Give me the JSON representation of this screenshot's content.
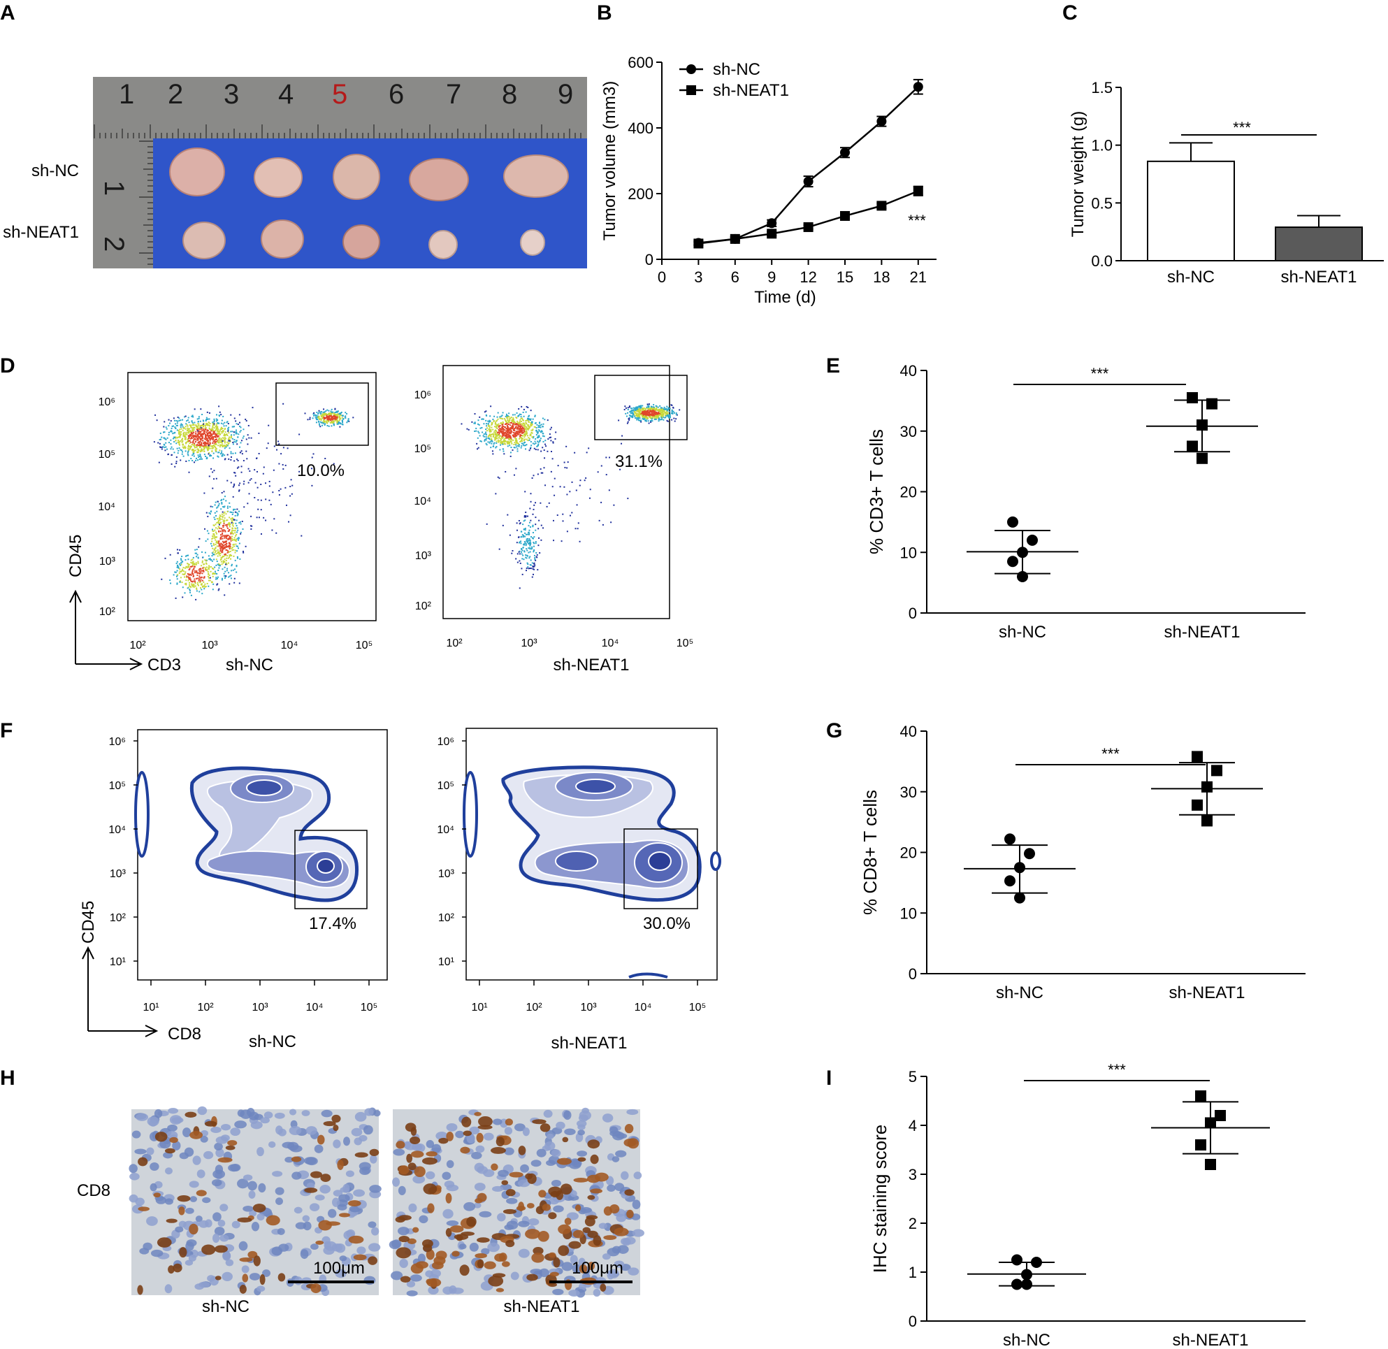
{
  "panels": {
    "A": {
      "label": "A",
      "row_labels": [
        "sh-NC",
        "sh-NEAT1"
      ],
      "ruler_numbers": [
        "1",
        "2",
        "3",
        "4",
        "5",
        "6",
        "7",
        "8",
        "9"
      ]
    },
    "B": {
      "label": "B"
    },
    "C": {
      "label": "C"
    },
    "D": {
      "label": "D",
      "x_axis": "CD3",
      "y_axis": "CD45",
      "plots": [
        {
          "name": "sh-NC",
          "percent": "10.0%"
        },
        {
          "name": "sh-NEAT1",
          "percent": "31.1%"
        }
      ]
    },
    "E": {
      "label": "E"
    },
    "F": {
      "label": "F",
      "x_axis": "CD8",
      "y_axis": "CD45",
      "plots": [
        {
          "name": "sh-NC",
          "percent": "17.4%"
        },
        {
          "name": "sh-NEAT1",
          "percent": "30.0%"
        }
      ]
    },
    "G": {
      "label": "G"
    },
    "H": {
      "label": "H",
      "row_label": "CD8",
      "scale_bar": "100μm",
      "images": [
        {
          "name": "sh-NC"
        },
        {
          "name": "sh-NEAT1"
        }
      ]
    },
    "I": {
      "label": "I"
    }
  },
  "chart_data": [
    {
      "panel": "B",
      "type": "line",
      "x": [
        3,
        6,
        9,
        12,
        15,
        18,
        21
      ],
      "series": [
        {
          "name": "sh-NC",
          "marker": "circle",
          "values": [
            50,
            62,
            110,
            237,
            325,
            420,
            525
          ],
          "errors": [
            6,
            6,
            10,
            16,
            15,
            15,
            22
          ]
        },
        {
          "name": "sh-NEAT1",
          "marker": "square",
          "values": [
            48,
            62,
            78,
            98,
            132,
            163,
            208
          ],
          "errors": [
            5,
            5,
            6,
            6,
            8,
            8,
            14
          ]
        }
      ],
      "xlabel": "Time (d)",
      "ylabel": "Tumor volume (mm3)",
      "xticks": [
        0,
        3,
        6,
        9,
        12,
        15,
        18,
        21
      ],
      "yticks": [
        0,
        200,
        400,
        600
      ],
      "xlim": [
        0,
        22.5
      ],
      "ylim": [
        0,
        600
      ],
      "annotation": "***",
      "legend": "top-left"
    },
    {
      "panel": "C",
      "type": "bar",
      "categories": [
        "sh-NC",
        "sh-NEAT1"
      ],
      "values": [
        0.86,
        0.29
      ],
      "errors": [
        0.16,
        0.1
      ],
      "bar_colors": [
        "#ffffff",
        "#5a5a5a"
      ],
      "ylabel": "Tumor weight (g)",
      "yticks": [
        "0.0",
        "0.5",
        "1.0",
        "1.5"
      ],
      "ylim": [
        0,
        1.5
      ],
      "annotation": "***"
    },
    {
      "panel": "E",
      "type": "scatter",
      "categories": [
        "sh-NC",
        "sh-NEAT1"
      ],
      "series": [
        {
          "name": "sh-NC",
          "marker": "circle",
          "points": [
            15,
            12,
            10,
            8.5,
            6
          ],
          "mean": 10.1,
          "sd_upper": 13.6,
          "sd_lower": 6.5
        },
        {
          "name": "sh-NEAT1",
          "marker": "square",
          "points": [
            35.5,
            34.5,
            31,
            27.5,
            25.5
          ],
          "mean": 30.8,
          "sd_upper": 35.1,
          "sd_lower": 26.6
        }
      ],
      "ylabel": "% CD3+ T cells",
      "yticks": [
        0,
        10,
        20,
        30,
        40
      ],
      "ylim": [
        0,
        40
      ],
      "annotation": "***"
    },
    {
      "panel": "G",
      "type": "scatter",
      "categories": [
        "sh-NC",
        "sh-NEAT1"
      ],
      "series": [
        {
          "name": "sh-NC",
          "marker": "circle",
          "points": [
            22.2,
            19.8,
            17.5,
            15.3,
            12.5
          ],
          "mean": 17.3,
          "sd_upper": 21.2,
          "sd_lower": 13.3
        },
        {
          "name": "sh-NEAT1",
          "marker": "square",
          "points": [
            35.8,
            33.5,
            30.8,
            27.8,
            25.2
          ],
          "mean": 30.5,
          "sd_upper": 34.8,
          "sd_lower": 26.2
        }
      ],
      "ylabel": "% CD8+ T cells",
      "yticks": [
        0,
        10,
        20,
        30,
        40
      ],
      "ylim": [
        0,
        40
      ],
      "annotation": "***"
    },
    {
      "panel": "I",
      "type": "scatter",
      "categories": [
        "sh-NC",
        "sh-NEAT1"
      ],
      "series": [
        {
          "name": "sh-NC",
          "marker": "circle",
          "points": [
            1.25,
            1.2,
            0.95,
            0.75,
            0.75
          ],
          "mean": 0.96,
          "sd_upper": 1.2,
          "sd_lower": 0.72
        },
        {
          "name": "sh-NEAT1",
          "marker": "square",
          "points": [
            4.6,
            4.2,
            4.05,
            3.6,
            3.2
          ],
          "mean": 3.95,
          "sd_upper": 4.48,
          "sd_lower": 3.42
        }
      ],
      "ylabel": "IHC staining score",
      "yticks": [
        0,
        1,
        2,
        3,
        4,
        5
      ],
      "ylim": [
        0,
        5
      ],
      "annotation": "***"
    }
  ]
}
